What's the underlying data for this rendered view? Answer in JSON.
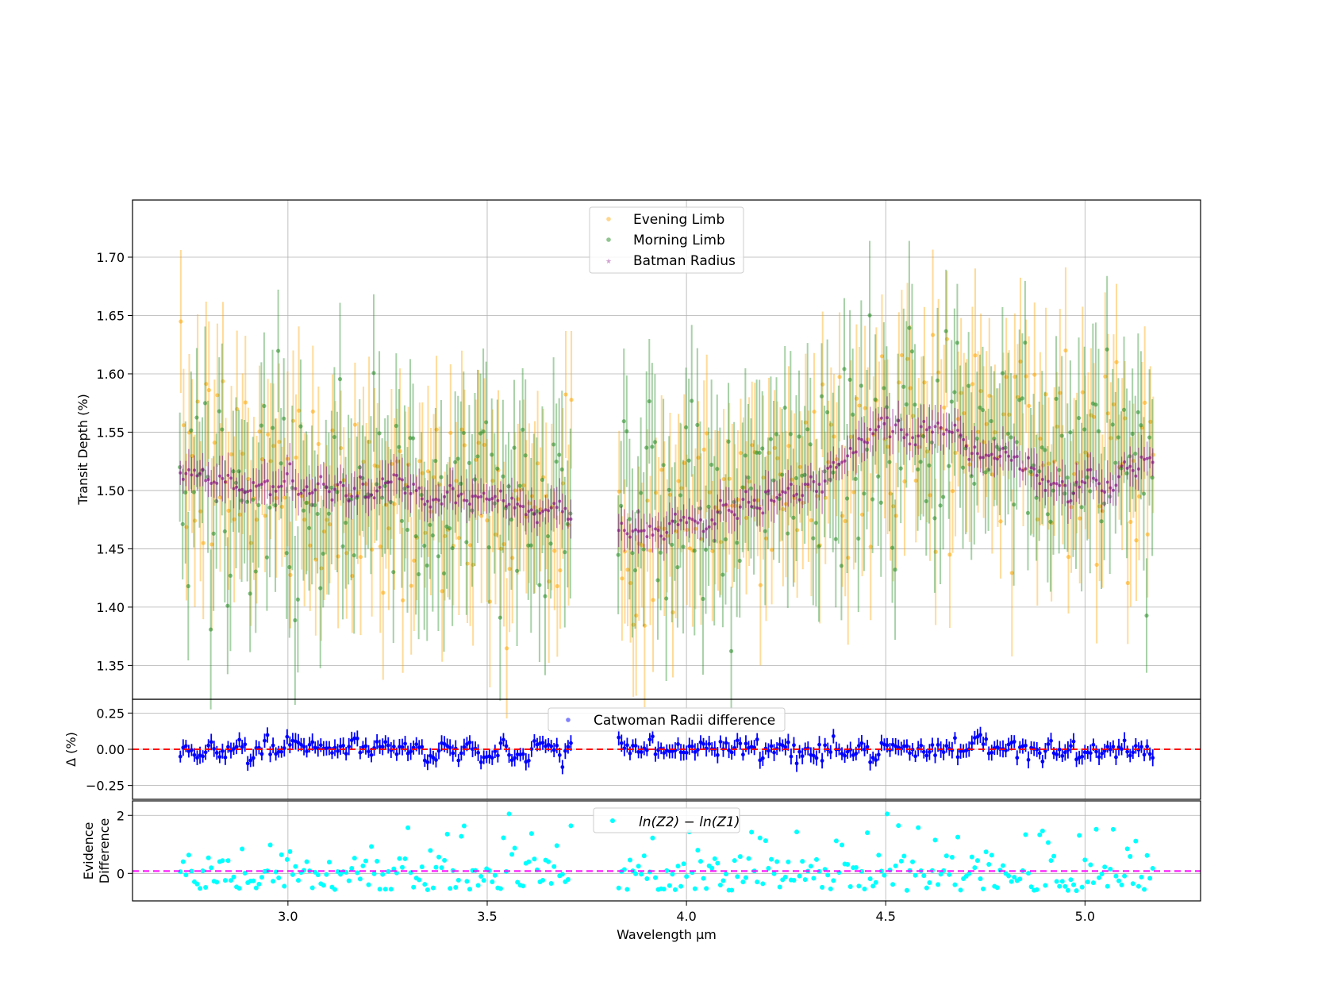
{
  "colors": {
    "evening": "#ffa500",
    "morning": "#228b22",
    "batman": "#800080",
    "catwoman": "#0000ff",
    "evidence": "#00ffff",
    "zero_line_mid": "#ff0000",
    "zero_line_bottom": "#ff00ff",
    "grid": "#b0b0b0"
  },
  "chart_data": [
    {
      "type": "scatter",
      "panel": "top",
      "ylabel": "Transit Depth (%)",
      "xlim": [
        2.61,
        5.29
      ],
      "ylim": [
        1.321,
        1.749
      ],
      "grid": true,
      "legend_position": "top-center",
      "x_ticks": [
        3.0,
        3.5,
        4.0,
        4.5,
        5.0
      ],
      "y_ticks": [
        1.35,
        1.4,
        1.45,
        1.5,
        1.55,
        1.6,
        1.65,
        1.7
      ],
      "y_tick_labels": [
        "1.35",
        "1.40",
        "1.45",
        "1.50",
        "1.55",
        "1.60",
        "1.65",
        "1.70"
      ],
      "x_segments": [
        [
          2.73,
          3.71
        ],
        [
          3.83,
          5.17
        ]
      ],
      "n_points": [
        140,
        190
      ],
      "series": [
        {
          "name": "Evening Limb",
          "color": "#ffa500",
          "marker": "circle",
          "baseline": [
            [
              2.73,
              1.52
            ],
            [
              3.0,
              1.51
            ],
            [
              3.4,
              1.49
            ],
            [
              3.71,
              1.47
            ],
            [
              3.83,
              1.45
            ],
            [
              4.1,
              1.48
            ],
            [
              4.35,
              1.53
            ],
            [
              4.6,
              1.56
            ],
            [
              4.9,
              1.54
            ],
            [
              5.17,
              1.53
            ]
          ],
          "scatter": 0.045,
          "error": [
            0.045,
            0.075
          ]
        },
        {
          "name": "Morning Limb",
          "color": "#228b22",
          "marker": "circle",
          "baseline": [
            [
              2.73,
              1.51
            ],
            [
              3.0,
              1.5
            ],
            [
              3.4,
              1.49
            ],
            [
              3.71,
              1.48
            ],
            [
              3.83,
              1.5
            ],
            [
              4.1,
              1.49
            ],
            [
              4.35,
              1.52
            ],
            [
              4.6,
              1.54
            ],
            [
              4.9,
              1.53
            ],
            [
              5.17,
              1.52
            ]
          ],
          "scatter": 0.045,
          "error": [
            0.045,
            0.075
          ]
        },
        {
          "name": "Batman Radius",
          "color": "#800080",
          "marker": "star",
          "baseline": [
            [
              2.73,
              1.52
            ],
            [
              2.85,
              1.505
            ],
            [
              3.2,
              1.5
            ],
            [
              3.5,
              1.49
            ],
            [
              3.71,
              1.48
            ],
            [
              3.83,
              1.47
            ],
            [
              3.9,
              1.465
            ],
            [
              4.1,
              1.48
            ],
            [
              4.3,
              1.5
            ],
            [
              4.45,
              1.54
            ],
            [
              4.6,
              1.55
            ],
            [
              4.8,
              1.53
            ],
            [
              4.95,
              1.5
            ],
            [
              5.17,
              1.525
            ]
          ],
          "scatter": 0.012,
          "error": [
            0.008,
            0.02
          ]
        }
      ]
    },
    {
      "type": "scatter",
      "panel": "middle",
      "ylabel": "Δ (%)",
      "xlim": [
        2.61,
        5.29
      ],
      "ylim": [
        -0.345,
        0.345
      ],
      "grid": true,
      "legend_position": "top-center",
      "y_ticks": [
        -0.25,
        0.0,
        0.25
      ],
      "y_tick_labels": [
        "−0.25",
        "0.00",
        "0.25"
      ],
      "reference_line": 0.0,
      "series": [
        {
          "name": "Catwoman Radii difference",
          "color": "#0000ff",
          "marker": "circle",
          "scatter": 0.07,
          "error": [
            0.04,
            0.06
          ]
        }
      ]
    },
    {
      "type": "scatter",
      "panel": "bottom",
      "ylabel_lines": [
        "Evidence",
        "Difference"
      ],
      "xlabel": "Wavelength μm",
      "xlim": [
        2.61,
        5.29
      ],
      "ylim": [
        -0.95,
        2.5
      ],
      "grid": true,
      "legend_position": "top-center",
      "y_ticks": [
        0,
        2
      ],
      "y_tick_labels": [
        "0",
        "2"
      ],
      "x_tick_labels": [
        "3.0",
        "3.5",
        "4.0",
        "4.5",
        "5.0"
      ],
      "reference_line": 0.08,
      "series": [
        {
          "name": "ln(Z2) − ln(Z1)",
          "color": "#00ffff",
          "marker": "circle",
          "range": [
            -0.75,
            2.05
          ]
        }
      ]
    }
  ]
}
